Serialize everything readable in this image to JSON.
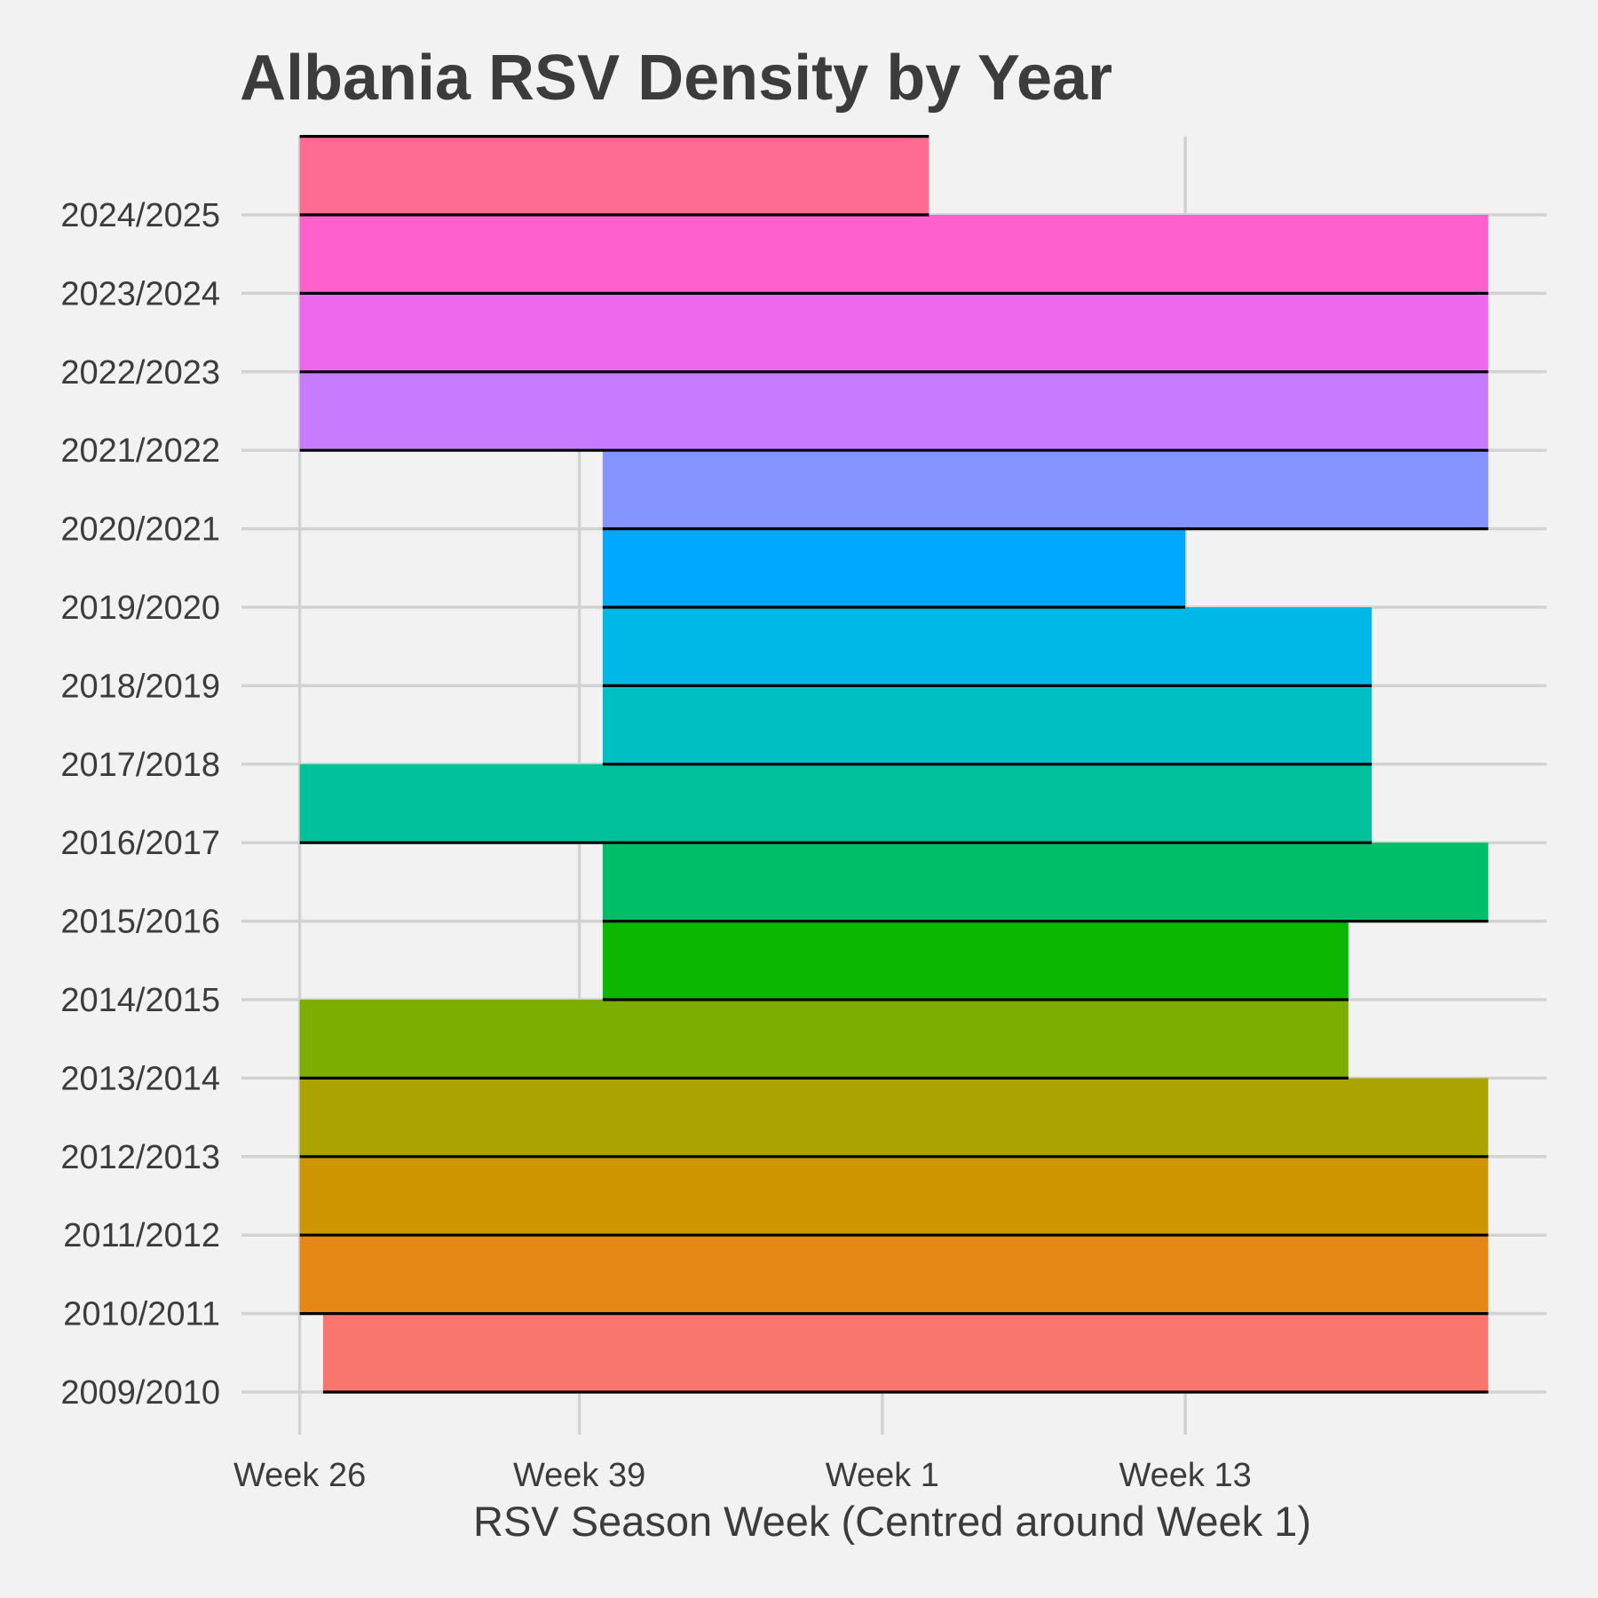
{
  "chart_data": {
    "type": "ridgeline",
    "title": "Albania RSV Density by Year",
    "xlabel": "RSV Season Week (Centred around Week 1)",
    "ylabel": "",
    "x_ticks": [
      {
        "label": "Week 26",
        "pos": 0
      },
      {
        "label": "Week 39",
        "pos": 12
      },
      {
        "label": "Week 1",
        "pos": 25
      },
      {
        "label": "Week 13",
        "pos": 38
      }
    ],
    "xlim": [
      -2.5,
      53.5
    ],
    "grid": true,
    "legend": "none",
    "series": [
      {
        "year": "2009/2010",
        "start": 1,
        "end": 51,
        "color": "#f8766d"
      },
      {
        "year": "2010/2011",
        "start": 0,
        "end": 51,
        "color": "#e58714"
      },
      {
        "year": "2011/2012",
        "start": 0,
        "end": 51,
        "color": "#cd9600"
      },
      {
        "year": "2012/2013",
        "start": 0,
        "end": 51,
        "color": "#aba300"
      },
      {
        "year": "2013/2014",
        "start": 0,
        "end": 45,
        "color": "#7cae00"
      },
      {
        "year": "2014/2015",
        "start": 13,
        "end": 45,
        "color": "#0cb702"
      },
      {
        "year": "2015/2016",
        "start": 13,
        "end": 51,
        "color": "#00be67"
      },
      {
        "year": "2016/2017",
        "start": 0,
        "end": 46,
        "color": "#00c19a"
      },
      {
        "year": "2017/2018",
        "start": 13,
        "end": 46,
        "color": "#00bfc4"
      },
      {
        "year": "2018/2019",
        "start": 13,
        "end": 46,
        "color": "#00b8e7"
      },
      {
        "year": "2019/2020",
        "start": 13,
        "end": 38,
        "color": "#00a9ff"
      },
      {
        "year": "2020/2021",
        "start": 13,
        "end": 51,
        "color": "#8494ff"
      },
      {
        "year": "2021/2022",
        "start": 0,
        "end": 51,
        "color": "#c77cff"
      },
      {
        "year": "2022/2023",
        "start": 0,
        "end": 51,
        "color": "#ed68ed"
      },
      {
        "year": "2023/2024",
        "start": 0,
        "end": 51,
        "color": "#ff61cc"
      },
      {
        "year": "2024/2025",
        "start": 0,
        "end": 27,
        "color": "#ff6c91"
      }
    ]
  }
}
